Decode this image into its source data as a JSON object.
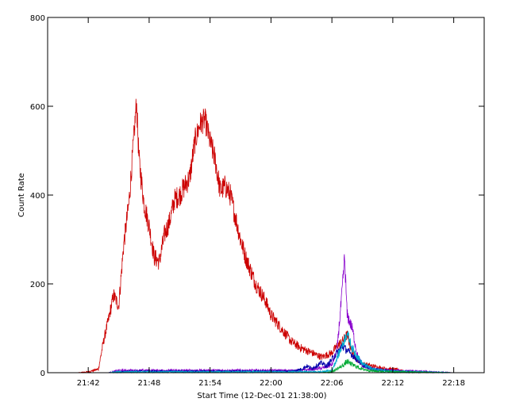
{
  "chart_data": {
    "type": "line",
    "xlabel": "Start Time (12-Dec-01 21:38:00)",
    "ylabel": "Count Rate",
    "x_unit": "time (HH:MM, 12-Dec-01)",
    "xlim": [
      "21:38",
      "22:21"
    ],
    "ylim": [
      0,
      800
    ],
    "x_ticks": [
      "21:42",
      "21:48",
      "21:54",
      "22:00",
      "22:06",
      "22:12",
      "22:18"
    ],
    "y_ticks": [
      0,
      200,
      400,
      600,
      800
    ],
    "grid": false,
    "series": [
      {
        "color": "#cc0000",
        "x": [
          "21:38:00",
          "21:41:00",
          "21:42:00",
          "21:43:00",
          "21:43:30",
          "21:44:00",
          "21:44:30",
          "21:45:00",
          "21:45:30",
          "21:46:00",
          "21:46:30",
          "21:46:45",
          "21:47:00",
          "21:47:30",
          "21:48:00",
          "21:48:30",
          "21:49:00",
          "21:49:30",
          "21:50:00",
          "21:50:30",
          "21:51:00",
          "21:51:30",
          "21:52:00",
          "21:52:30",
          "21:53:00",
          "21:53:30",
          "21:54:00",
          "21:54:30",
          "21:55:00",
          "21:55:30",
          "21:56:00",
          "21:56:30",
          "21:57:00",
          "21:57:30",
          "21:58:00",
          "21:58:30",
          "21:59:00",
          "21:59:30",
          "22:00:00",
          "22:01:00",
          "22:02:00",
          "22:03:00",
          "22:04:00",
          "22:05:00",
          "22:06:00",
          "22:06:30",
          "22:07:00",
          "22:07:30",
          "22:08:00",
          "22:08:30",
          "22:09:00",
          "22:10:00",
          "22:11:00",
          "22:12:00",
          "22:13:00"
        ],
        "y": [
          0,
          0,
          2,
          8,
          70,
          120,
          175,
          150,
          290,
          380,
          530,
          610,
          480,
          380,
          330,
          260,
          250,
          310,
          340,
          390,
          400,
          420,
          440,
          520,
          560,
          570,
          520,
          480,
          410,
          420,
          400,
          350,
          300,
          260,
          230,
          200,
          180,
          160,
          130,
          100,
          70,
          55,
          45,
          35,
          45,
          60,
          70,
          85,
          45,
          30,
          20,
          15,
          10,
          8,
          5
        ]
      },
      {
        "color": "#8800cc",
        "x": [
          "21:38:00",
          "21:44:00",
          "21:45:00",
          "21:55:00",
          "22:00:00",
          "22:03:00",
          "22:04:00",
          "22:05:00",
          "22:06:00",
          "22:06:30",
          "22:07:00",
          "22:07:15",
          "22:07:30",
          "22:08:00",
          "22:08:30",
          "22:09:00",
          "22:10:00",
          "22:12:00",
          "22:18:00"
        ],
        "y": [
          0,
          0,
          5,
          5,
          5,
          5,
          8,
          10,
          18,
          50,
          180,
          260,
          130,
          100,
          40,
          15,
          8,
          5,
          0
        ]
      },
      {
        "color": "#0000aa",
        "x": [
          "21:38:00",
          "21:44:00",
          "21:46:00",
          "21:58:00",
          "22:02:00",
          "22:03:00",
          "22:03:30",
          "22:04:00",
          "22:05:00",
          "22:05:30",
          "22:06:00",
          "22:07:00",
          "22:08:00",
          "22:09:00",
          "22:10:00",
          "22:12:00",
          "22:18:00"
        ],
        "y": [
          0,
          0,
          3,
          3,
          3,
          8,
          15,
          10,
          22,
          15,
          30,
          60,
          40,
          18,
          8,
          3,
          0
        ]
      },
      {
        "color": "#00aacc",
        "x": [
          "21:38:00",
          "21:44:00",
          "21:45:00",
          "21:58:00",
          "22:05:00",
          "22:06:00",
          "22:07:00",
          "22:07:30",
          "22:08:00",
          "22:09:00",
          "22:10:00",
          "22:12:00",
          "22:18:00"
        ],
        "y": [
          0,
          0,
          2,
          2,
          2,
          5,
          60,
          90,
          55,
          20,
          8,
          3,
          0
        ]
      },
      {
        "color": "#00aa33",
        "x": [
          "21:38:00",
          "22:05:00",
          "22:06:00",
          "22:07:00",
          "22:07:30",
          "22:08:00",
          "22:09:00",
          "22:10:00",
          "22:12:00",
          "22:18:00"
        ],
        "y": [
          0,
          0,
          2,
          15,
          25,
          18,
          8,
          4,
          2,
          0
        ]
      }
    ]
  }
}
